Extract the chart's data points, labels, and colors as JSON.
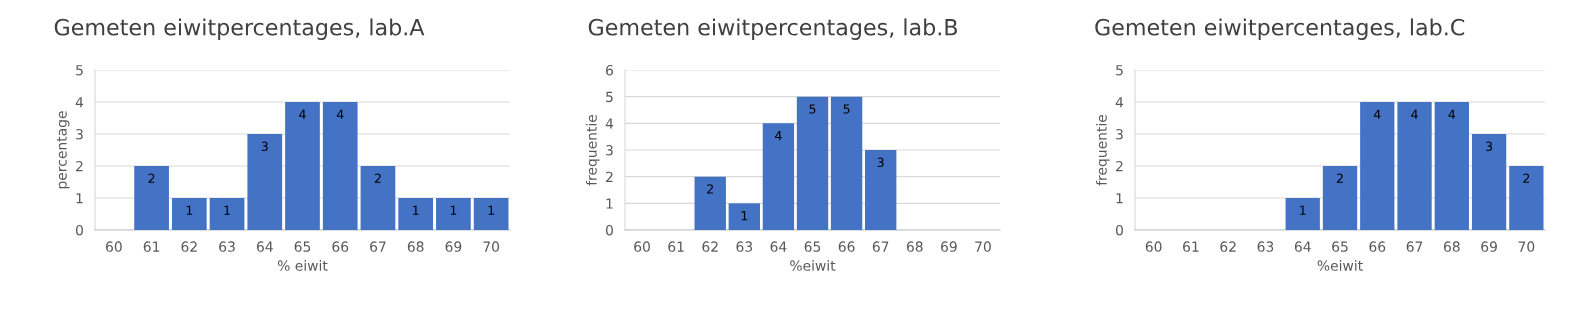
{
  "chart_data": [
    {
      "type": "bar",
      "title": "Gemeten eiwitpercentages, lab.A",
      "xlabel": "% eiwit",
      "ylabel": "percentage",
      "categories": [
        "60",
        "61",
        "62",
        "63",
        "64",
        "65",
        "66",
        "67",
        "68",
        "69",
        "70"
      ],
      "values": [
        0,
        2,
        1,
        1,
        3,
        4,
        4,
        2,
        1,
        1,
        1
      ],
      "value_labels": [
        null,
        "2",
        "1",
        "1",
        "3",
        "4",
        "4",
        "2",
        "1",
        "1",
        "1"
      ],
      "color": "#4472c4",
      "ylim": [
        0,
        5
      ],
      "yticks": [
        0,
        1,
        2,
        3,
        4,
        5
      ],
      "grid": "y"
    },
    {
      "type": "bar",
      "title": "Gemeten eiwitpercentages, lab.B",
      "xlabel": "%eiwit",
      "ylabel": "frequentie",
      "categories": [
        "60",
        "61",
        "62",
        "63",
        "64",
        "65",
        "66",
        "67",
        "68",
        "69",
        "70"
      ],
      "values": [
        0,
        0,
        2,
        1,
        4,
        5,
        5,
        3,
        0,
        0,
        0
      ],
      "value_labels": [
        null,
        null,
        "2",
        "1",
        "4",
        "5",
        "5",
        "3",
        null,
        null,
        null
      ],
      "color": "#4472c4",
      "ylim": [
        0,
        6
      ],
      "yticks": [
        0,
        1,
        2,
        3,
        4,
        5,
        6
      ],
      "grid": "y"
    },
    {
      "type": "bar",
      "title": "Gemeten eiwitpercentages, lab.C",
      "xlabel": "%eiwit",
      "ylabel": "frequentie",
      "categories": [
        "60",
        "61",
        "62",
        "63",
        "64",
        "65",
        "66",
        "67",
        "68",
        "69",
        "70"
      ],
      "values": [
        0,
        0,
        0,
        0,
        1,
        2,
        4,
        4,
        4,
        3,
        2
      ],
      "value_labels": [
        null,
        null,
        null,
        null,
        "1",
        "2",
        "4",
        "4",
        "4",
        "3",
        "2"
      ],
      "color": "#4472c4",
      "ylim": [
        0,
        5
      ],
      "yticks": [
        0,
        1,
        2,
        3,
        4,
        5
      ],
      "grid": "y"
    }
  ]
}
